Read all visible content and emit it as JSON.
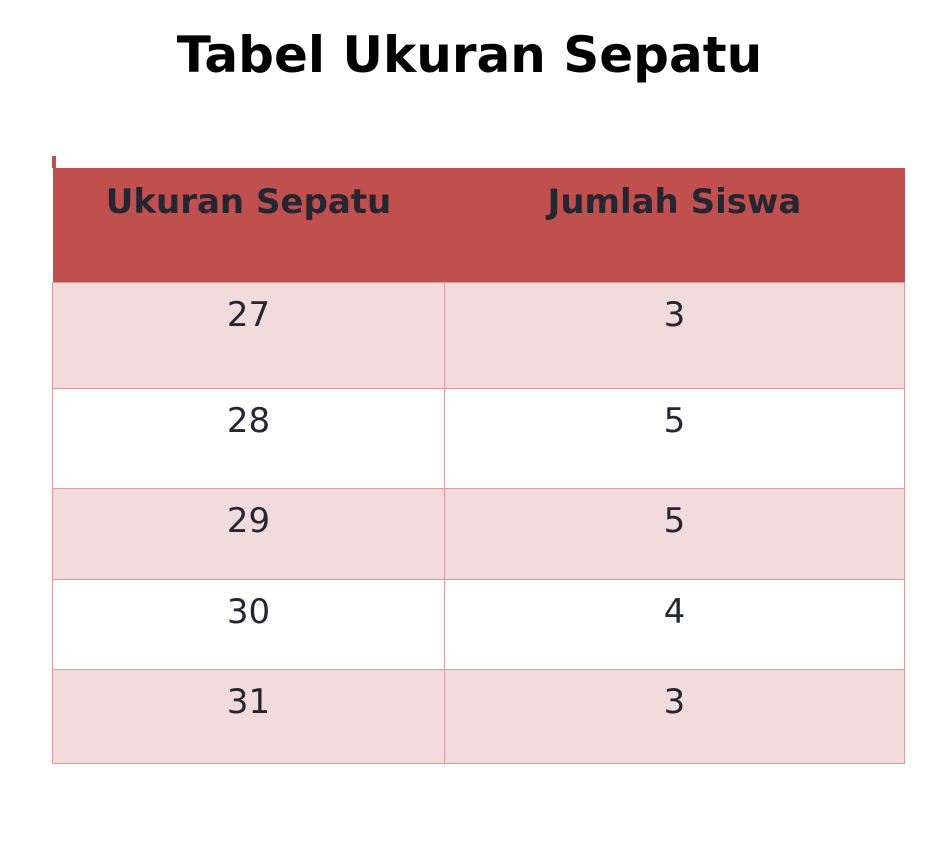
{
  "title": "Tabel Ukuran Sepatu",
  "colors": {
    "header": "#C0504D",
    "band": "#F2DCDB",
    "border": "#E29A98"
  },
  "table": {
    "headers": [
      "Ukuran Sepatu",
      "Jumlah Siswa"
    ],
    "rows": [
      [
        "27",
        "3"
      ],
      [
        "28",
        "5"
      ],
      [
        "29",
        "5"
      ],
      [
        "30",
        "4"
      ],
      [
        "31",
        "3"
      ]
    ]
  }
}
